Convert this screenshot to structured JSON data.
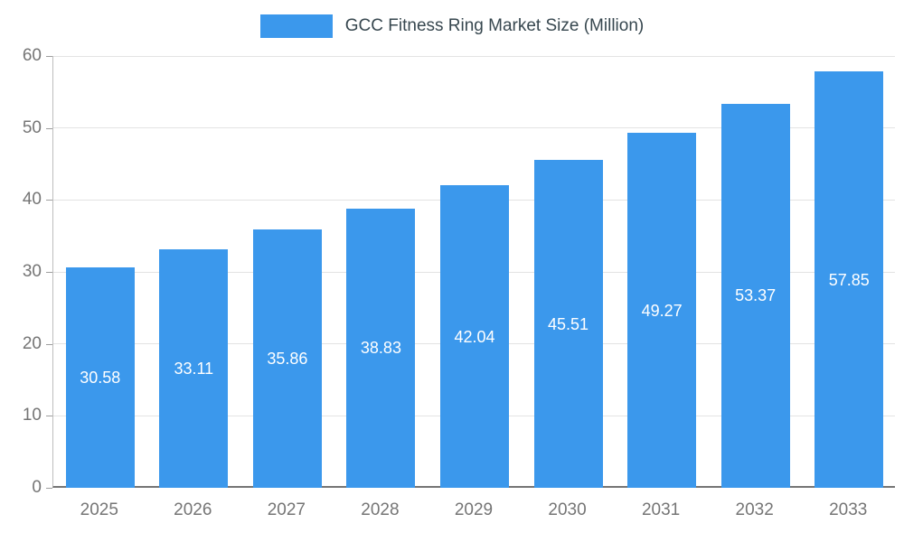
{
  "legend": {
    "label": "GCC Fitness Ring Market Size (Million)"
  },
  "chart_data": {
    "type": "bar",
    "title": "GCC Fitness Ring Market Size (Million)",
    "series_name": "GCC Fitness Ring Market Size (Million)",
    "categories": [
      "2025",
      "2026",
      "2027",
      "2028",
      "2029",
      "2030",
      "2031",
      "2032",
      "2033"
    ],
    "values": [
      30.58,
      33.11,
      35.86,
      38.83,
      42.04,
      45.51,
      49.27,
      53.37,
      57.85
    ],
    "xlabel": "",
    "ylabel": "",
    "ylim": [
      0,
      60
    ],
    "yticks": [
      0,
      10,
      20,
      30,
      40,
      50,
      60
    ],
    "grid": true,
    "legend_position": "top",
    "value_labels": "inside-center",
    "colors": {
      "bar": "#3b98ec",
      "value_label": "#ffffff",
      "axis_text": "#757575",
      "legend_text": "#37474f",
      "gridline": "#e3e3e3",
      "axis_line": "#757575"
    }
  }
}
